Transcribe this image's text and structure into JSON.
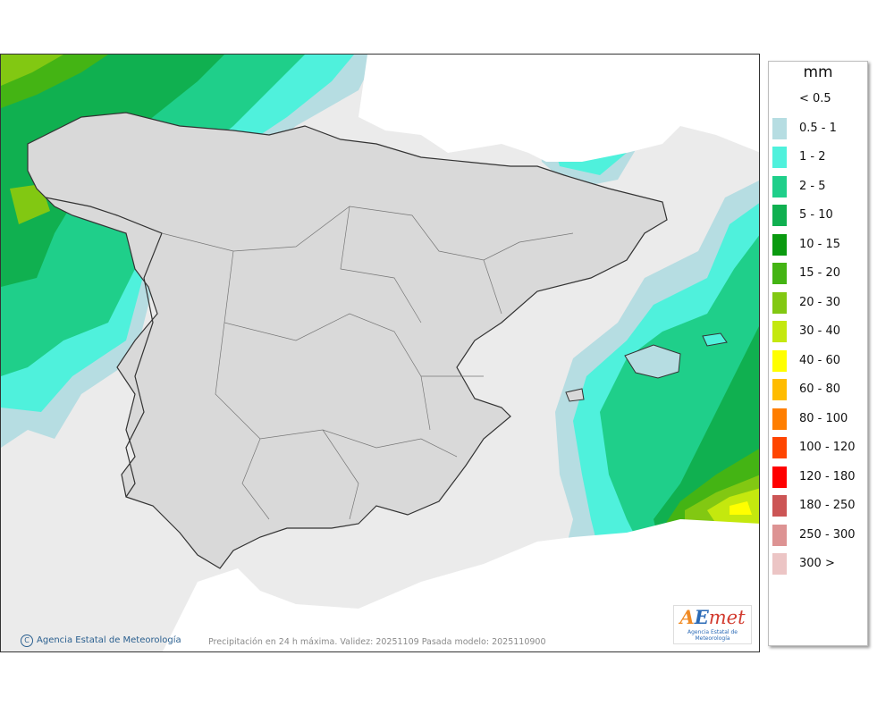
{
  "legend": {
    "title": "mm",
    "entries": [
      {
        "label": "< 0.5",
        "color": "#ffffff"
      },
      {
        "label": "0.5 - 1",
        "color": "#b6dde2"
      },
      {
        "label": "1 - 2",
        "color": "#4ff1dc"
      },
      {
        "label": "2 - 5",
        "color": "#1fcf8a"
      },
      {
        "label": "5 - 10",
        "color": "#10b050"
      },
      {
        "label": "10 - 15",
        "color": "#0a9a10"
      },
      {
        "label": "15 - 20",
        "color": "#44b414"
      },
      {
        "label": "20 - 30",
        "color": "#82c812"
      },
      {
        "label": "30 - 40",
        "color": "#c4e80e"
      },
      {
        "label": "40 - 60",
        "color": "#ffff00"
      },
      {
        "label": "60 - 80",
        "color": "#ffbc00"
      },
      {
        "label": "80 - 100",
        "color": "#ff7e00"
      },
      {
        "label": "100 - 120",
        "color": "#ff4500"
      },
      {
        "label": "120 - 180",
        "color": "#ff0000"
      },
      {
        "label": "180 - 250",
        "color": "#cc5555"
      },
      {
        "label": "250 - 300",
        "color": "#dd9393"
      },
      {
        "label": "300 >",
        "color": "#ecc5c5"
      }
    ]
  },
  "footer": {
    "credit": "Agencia Estatal de Meteorología",
    "caption": "Precipitación en 24 h máxima. Validez: 20251109 Pasada modelo: 2025110900"
  },
  "logo": {
    "word_a": "A",
    "word_e": "E",
    "word_met": "met",
    "subtitle": "Agencia Estatal de Meteorología"
  }
}
